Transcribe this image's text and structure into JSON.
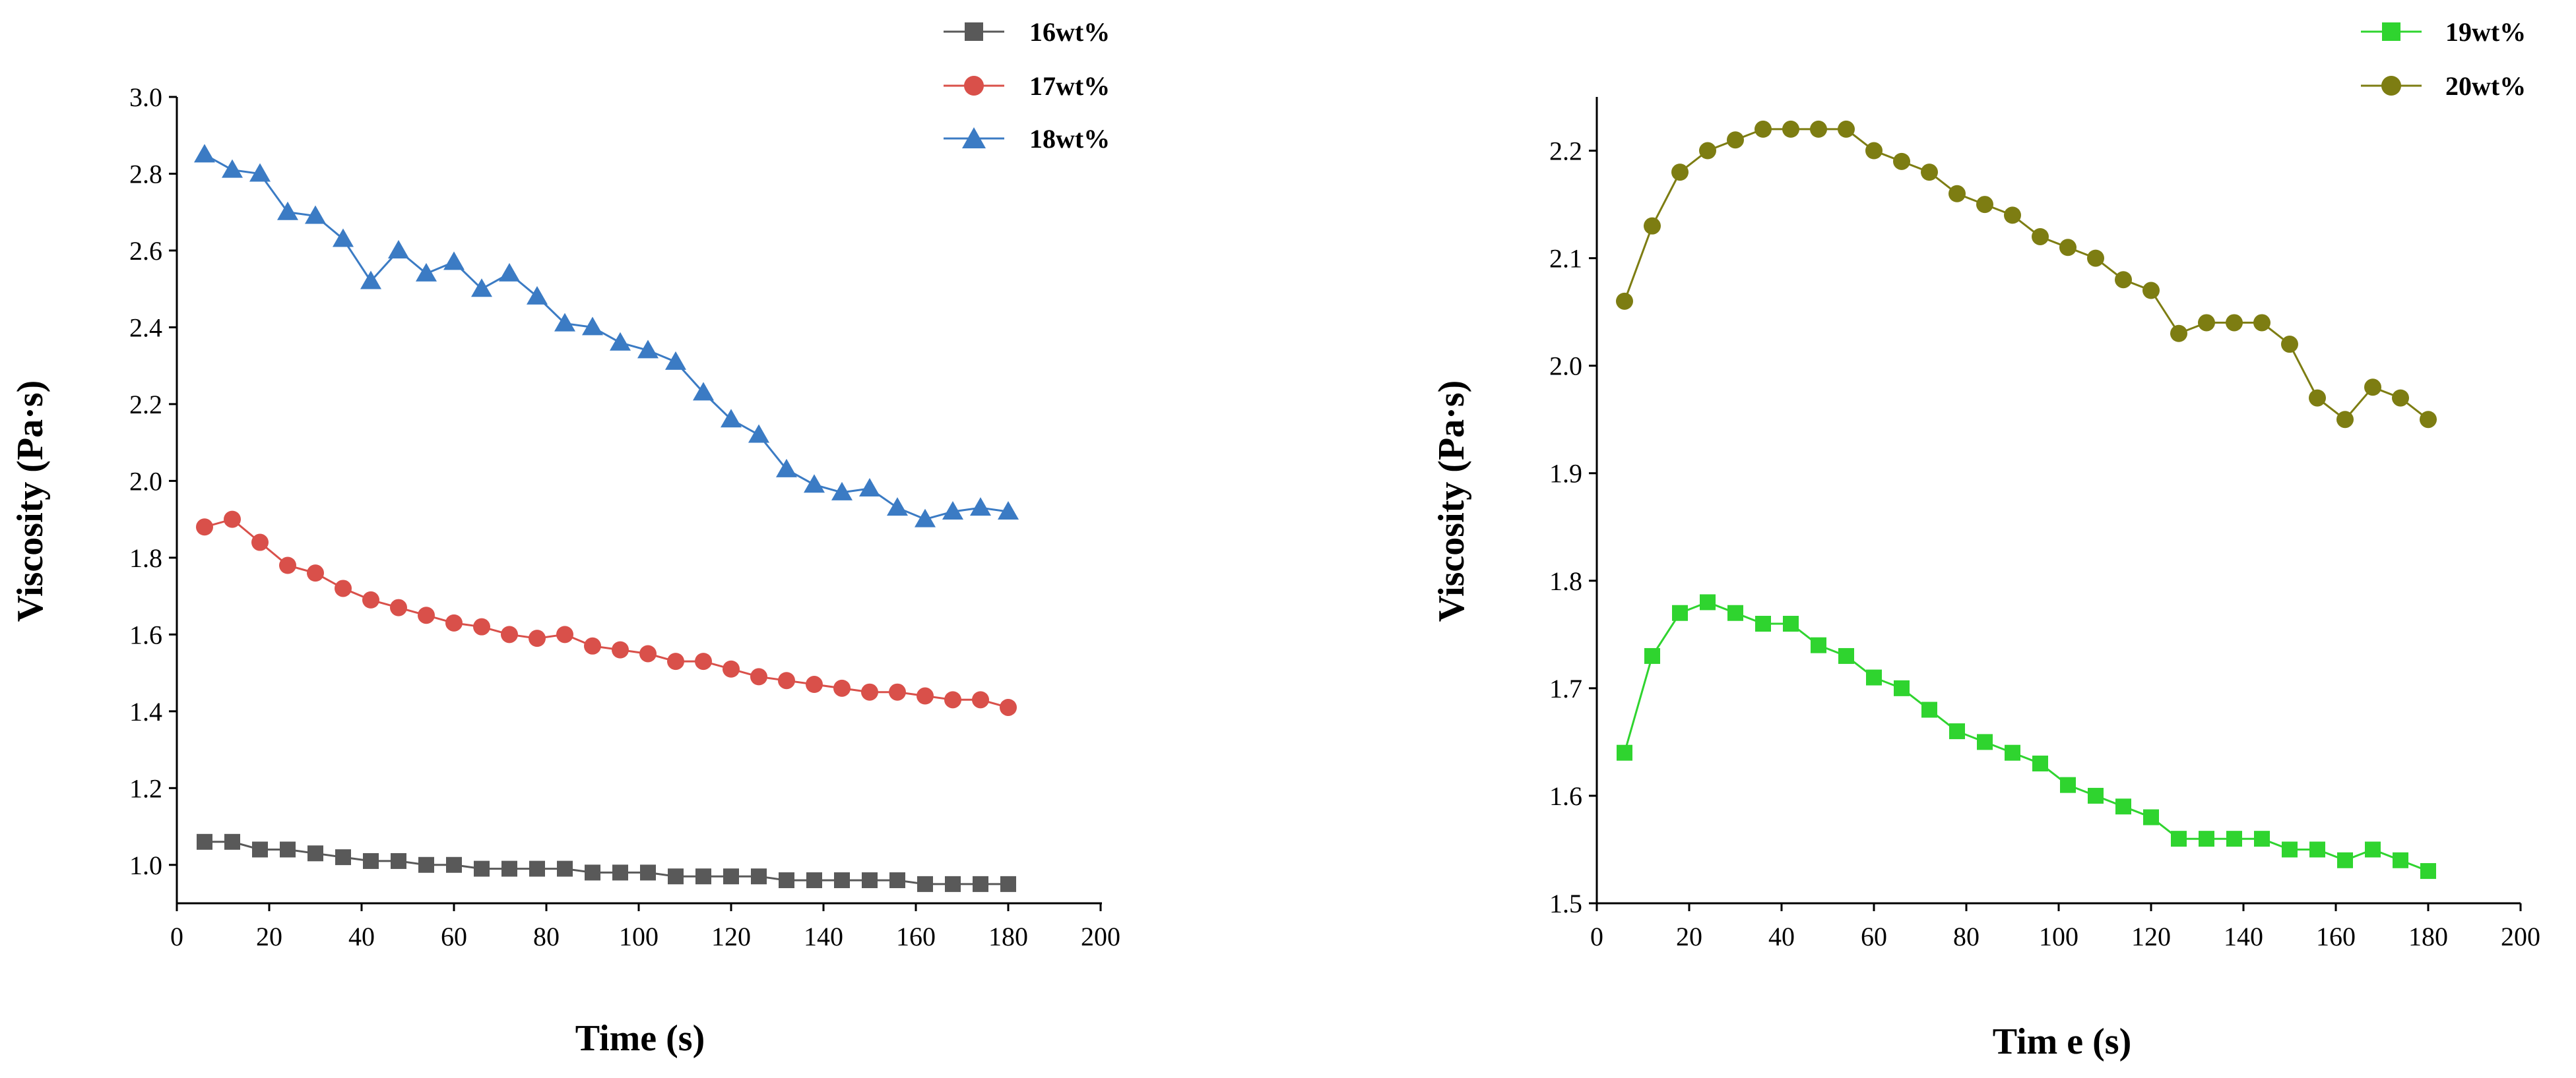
{
  "chart_data": [
    {
      "type": "line",
      "id": "left",
      "xlabel": "Time (s)",
      "ylabel": "Viscosity (Pa·s)",
      "xlim": [
        0,
        200
      ],
      "ylim": [
        0.9,
        3.0
      ],
      "xticks": [
        "0",
        "20",
        "40",
        "60",
        "80",
        "100",
        "120",
        "140",
        "160",
        "180",
        "200"
      ],
      "yticks": [
        "1.0",
        "1.2",
        "1.4",
        "1.6",
        "1.8",
        "2.0",
        "2.2",
        "2.4",
        "2.6",
        "2.8",
        "3.0"
      ],
      "legend_position": "top-right",
      "x": [
        6,
        12,
        18,
        24,
        30,
        36,
        42,
        48,
        54,
        60,
        66,
        72,
        78,
        84,
        90,
        96,
        102,
        108,
        114,
        120,
        126,
        132,
        138,
        144,
        150,
        156,
        162,
        168,
        174,
        180
      ],
      "series": [
        {
          "name": "16wt%",
          "color": "#595959",
          "marker": "square",
          "values": [
            1.06,
            1.06,
            1.04,
            1.04,
            1.03,
            1.02,
            1.01,
            1.01,
            1.0,
            1.0,
            0.99,
            0.99,
            0.99,
            0.99,
            0.98,
            0.98,
            0.98,
            0.97,
            0.97,
            0.97,
            0.97,
            0.96,
            0.96,
            0.96,
            0.96,
            0.96,
            0.95,
            0.95,
            0.95,
            0.95
          ]
        },
        {
          "name": "17wt%",
          "color": "#d9504a",
          "marker": "circle",
          "values": [
            1.88,
            1.9,
            1.84,
            1.78,
            1.76,
            1.72,
            1.69,
            1.67,
            1.65,
            1.63,
            1.62,
            1.6,
            1.59,
            1.6,
            1.57,
            1.56,
            1.55,
            1.53,
            1.53,
            1.51,
            1.49,
            1.48,
            1.47,
            1.46,
            1.45,
            1.45,
            1.44,
            1.43,
            1.43,
            1.41
          ]
        },
        {
          "name": "18wt%",
          "color": "#3b7bc4",
          "marker": "triangle",
          "values": [
            2.85,
            2.81,
            2.8,
            2.7,
            2.69,
            2.63,
            2.52,
            2.6,
            2.54,
            2.57,
            2.5,
            2.54,
            2.48,
            2.41,
            2.4,
            2.36,
            2.34,
            2.31,
            2.23,
            2.16,
            2.12,
            2.03,
            1.99,
            1.97,
            1.98,
            1.93,
            1.9,
            1.92,
            1.93,
            1.92
          ]
        }
      ]
    },
    {
      "type": "line",
      "id": "right",
      "xlabel": "Tim e (s)",
      "ylabel": "Viscosity (Pa·s)",
      "xlim": [
        0,
        200
      ],
      "ylim": [
        1.5,
        2.25
      ],
      "xticks": [
        "0",
        "20",
        "40",
        "60",
        "80",
        "100",
        "120",
        "140",
        "160",
        "180",
        "200"
      ],
      "yticks": [
        "1.5",
        "1.6",
        "1.7",
        "1.8",
        "1.9",
        "2.0",
        "2.1",
        "2.2"
      ],
      "legend_position": "top-right",
      "x": [
        6,
        12,
        18,
        24,
        30,
        36,
        42,
        48,
        54,
        60,
        66,
        72,
        78,
        84,
        90,
        96,
        102,
        108,
        114,
        120,
        126,
        132,
        138,
        144,
        150,
        156,
        162,
        168,
        174,
        180
      ],
      "series": [
        {
          "name": "19wt%",
          "color": "#2fd42f",
          "marker": "square",
          "values": [
            1.64,
            1.73,
            1.77,
            1.78,
            1.77,
            1.76,
            1.76,
            1.74,
            1.73,
            1.71,
            1.7,
            1.68,
            1.66,
            1.65,
            1.64,
            1.63,
            1.61,
            1.6,
            1.59,
            1.58,
            1.56,
            1.56,
            1.56,
            1.56,
            1.55,
            1.55,
            1.54,
            1.55,
            1.54,
            1.53
          ]
        },
        {
          "name": "20wt%",
          "color": "#7d7d12",
          "marker": "circle",
          "values": [
            2.06,
            2.13,
            2.18,
            2.2,
            2.21,
            2.22,
            2.22,
            2.22,
            2.22,
            2.2,
            2.19,
            2.18,
            2.16,
            2.15,
            2.14,
            2.12,
            2.11,
            2.1,
            2.08,
            2.07,
            2.03,
            2.04,
            2.04,
            2.04,
            2.02,
            1.97,
            1.95,
            1.98,
            1.97,
            1.95
          ]
        }
      ]
    }
  ]
}
